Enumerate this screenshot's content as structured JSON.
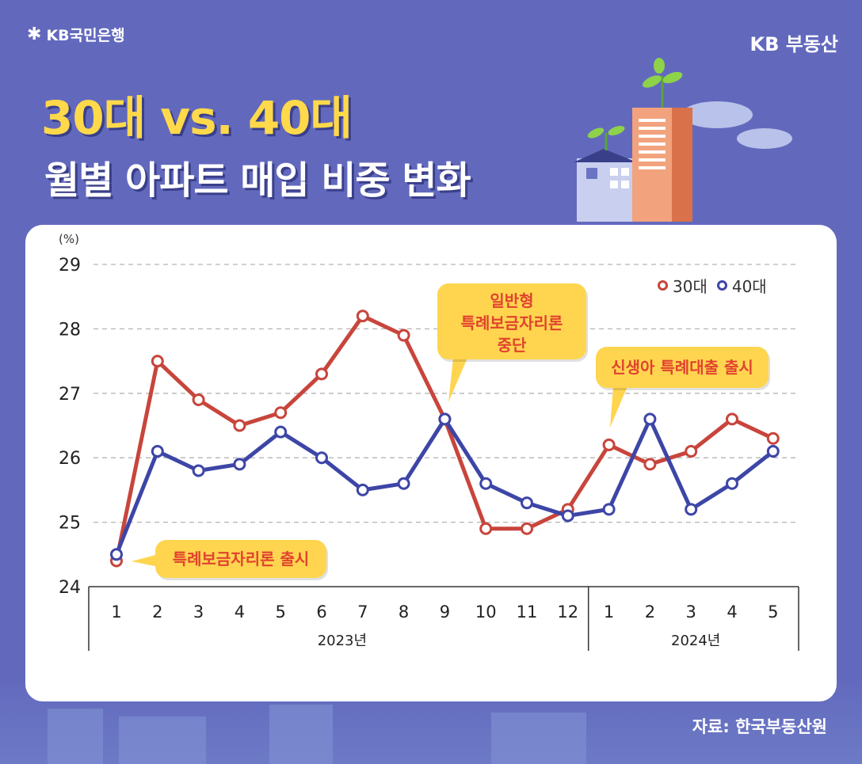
{
  "header": {
    "bank_logo": "KB국민은행",
    "brand": "KB 부동산",
    "title_line1": "30대 vs. 40대",
    "title_line2": "월별 아파트 매입 비중 변화"
  },
  "source": "자료: 한국부동산원",
  "callouts": {
    "launch": "특례보금자리론 출시",
    "suspend_line1": "일반형",
    "suspend_line2": "특례보금자리론",
    "suspend_line3": "중단",
    "newborn": "신생아 특례대출 출시"
  },
  "colors": {
    "series_30s": "#c8453c",
    "series_40s": "#3d46a6",
    "callout_bg": "#ffd54f",
    "callout_text": "#e0432f",
    "background": "#6269bd"
  },
  "chart_data": {
    "type": "line",
    "unit_label": "(%)",
    "ylim": [
      24,
      29
    ],
    "y_ticks": [
      "24",
      "25",
      "26",
      "27",
      "28",
      "29"
    ],
    "x": [
      "1",
      "2",
      "3",
      "4",
      "5",
      "6",
      "7",
      "8",
      "9",
      "10",
      "11",
      "12",
      "1",
      "2",
      "3",
      "4",
      "5"
    ],
    "year_groups": [
      {
        "label": "2023년",
        "count": 12
      },
      {
        "label": "2024년",
        "count": 5
      }
    ],
    "grid": true,
    "legend_position": "top-right",
    "series": [
      {
        "name": "30대",
        "values": [
          24.4,
          27.5,
          26.9,
          26.5,
          26.7,
          27.3,
          28.2,
          27.9,
          26.6,
          24.9,
          24.9,
          25.2,
          26.2,
          25.9,
          26.1,
          26.6,
          26.3
        ]
      },
      {
        "name": "40대",
        "values": [
          24.5,
          26.1,
          25.8,
          25.9,
          26.4,
          26.0,
          25.5,
          25.6,
          26.6,
          25.6,
          25.3,
          25.1,
          25.2,
          26.6,
          25.2,
          25.6,
          26.1
        ]
      }
    ]
  }
}
